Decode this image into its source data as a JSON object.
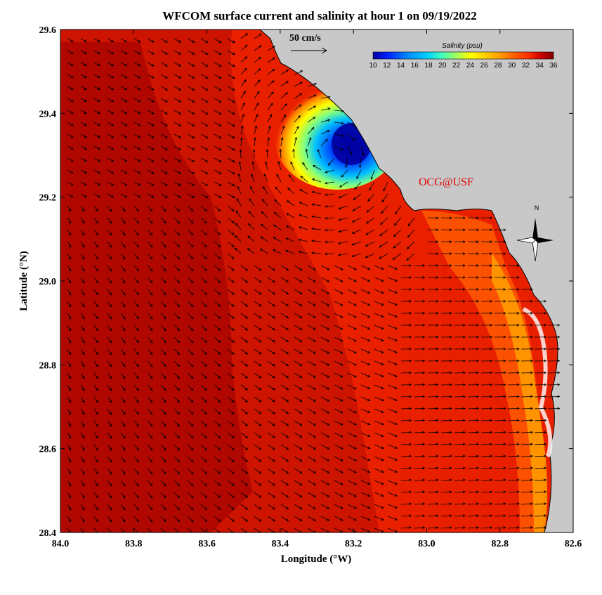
{
  "title": "WFCOM surface current and salinity at hour 1 on 09/19/2022",
  "x_axis": {
    "label": "Longitude (°W)",
    "ticks": [
      "84.0",
      "83.8",
      "83.6",
      "83.4",
      "83.2",
      "83.0",
      "82.8",
      "82.6"
    ]
  },
  "y_axis": {
    "label": "Latitude (°N)",
    "ticks": [
      "29.6",
      "29.4",
      "29.2",
      "29.0",
      "28.8",
      "28.6",
      "28.4"
    ]
  },
  "colorbar": {
    "title": "Salinity (psu)",
    "ticks": [
      "10",
      "12",
      "14",
      "16",
      "18",
      "20",
      "22",
      "24",
      "26",
      "28",
      "30",
      "32",
      "34",
      "36"
    ],
    "colors": [
      "#0000a0",
      "#0030ff",
      "#0090ff",
      "#00d0ff",
      "#40ffc0",
      "#a0ff60",
      "#ffff00",
      "#ffd000",
      "#ffa000",
      "#ff7000",
      "#ff4000",
      "#e01000",
      "#b00000",
      "#800000"
    ]
  },
  "scale_vector": {
    "label": "50 cm/s"
  },
  "credit": "OCG@USF",
  "compass": {
    "label": "N"
  },
  "colors": {
    "land": "#c8c8c8",
    "deep_water": "#a00000",
    "shelf_water": "#ee2200",
    "coastal_water": "#ff6600",
    "plume_fresh": "#0000a0"
  }
}
